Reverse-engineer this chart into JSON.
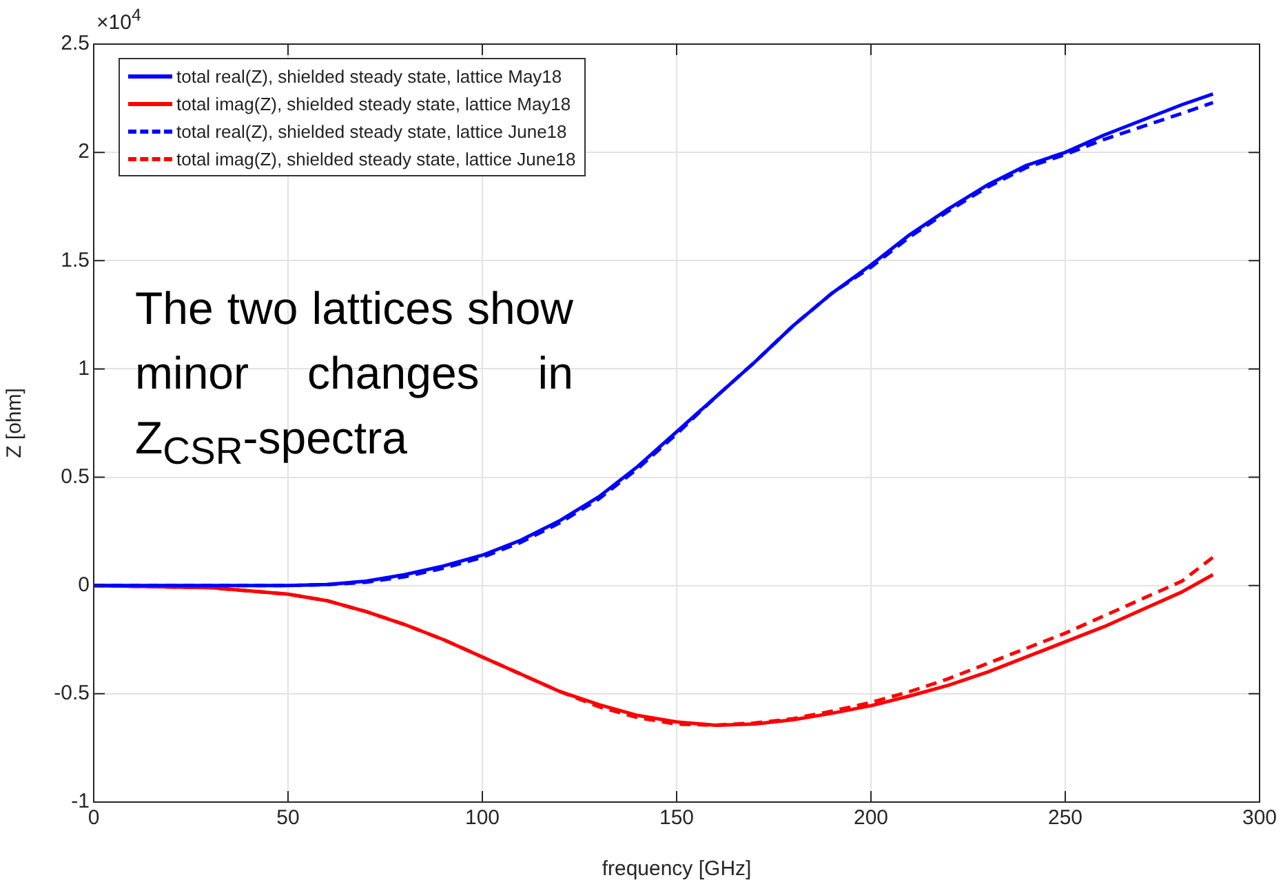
{
  "chart_data": {
    "type": "line",
    "xlabel": "frequency [GHz]",
    "ylabel": "Z [ohm]",
    "annotations": [
      "×10$^{4}$",
      "The two lattices show minor changes in Z$_{CSR}$-spectra"
    ],
    "xlim": [
      0,
      300
    ],
    "xticks": [
      0,
      50,
      100,
      150,
      200,
      250,
      300
    ],
    "ylim": [
      -1,
      2.5
    ],
    "yticks": [
      -1,
      -0.5,
      0,
      0.5,
      1,
      1.5,
      2,
      2.5
    ],
    "grid": true,
    "legend": "top left",
    "marker": "none",
    "series": [
      {
        "name": "total real(Z), shielded steady state, lattice May18",
        "color": "#0000ff",
        "line_style": "solid",
        "x": [
          0,
          50,
          60,
          70,
          80,
          90,
          100,
          110,
          120,
          130,
          140,
          150,
          160,
          170,
          180,
          190,
          200,
          210,
          220,
          230,
          240,
          250,
          260,
          270,
          280,
          288
        ],
        "values": [
          0,
          0,
          0.005,
          0.02,
          0.05,
          0.09,
          0.14,
          0.21,
          0.3,
          0.41,
          0.55,
          0.71,
          0.87,
          1.03,
          1.2,
          1.35,
          1.48,
          1.62,
          1.74,
          1.85,
          1.94,
          2.0,
          2.08,
          2.15,
          2.22,
          2.27
        ]
      },
      {
        "name": "total imag(Z), shielded steady state, lattice May18",
        "color": "#ff0000",
        "line_style": "solid",
        "x": [
          0,
          30,
          50,
          60,
          70,
          80,
          90,
          100,
          110,
          120,
          130,
          140,
          150,
          160,
          170,
          180,
          190,
          200,
          210,
          220,
          230,
          240,
          250,
          260,
          270,
          280,
          288
        ],
        "values": [
          0,
          -0.01,
          -0.04,
          -0.07,
          -0.12,
          -0.18,
          -0.25,
          -0.33,
          -0.41,
          -0.49,
          -0.55,
          -0.6,
          -0.63,
          -0.645,
          -0.64,
          -0.62,
          -0.59,
          -0.555,
          -0.51,
          -0.46,
          -0.4,
          -0.33,
          -0.26,
          -0.19,
          -0.11,
          -0.03,
          0.05
        ]
      },
      {
        "name": "total real(Z), shielded steady state, lattice June18",
        "color": "#0000ff",
        "line_style": "dashed",
        "x": [
          0,
          50,
          60,
          70,
          80,
          90,
          100,
          110,
          120,
          130,
          140,
          150,
          160,
          170,
          180,
          190,
          200,
          210,
          220,
          230,
          240,
          250,
          260,
          270,
          280,
          288
        ],
        "values": [
          0,
          0,
          0.004,
          0.015,
          0.04,
          0.08,
          0.13,
          0.2,
          0.29,
          0.4,
          0.54,
          0.7,
          0.87,
          1.03,
          1.2,
          1.35,
          1.47,
          1.61,
          1.73,
          1.84,
          1.93,
          1.99,
          2.06,
          2.12,
          2.18,
          2.23
        ]
      },
      {
        "name": "total imag(Z), shielded steady state, lattice June18",
        "color": "#ff0000",
        "line_style": "dashed",
        "x": [
          0,
          30,
          50,
          60,
          70,
          80,
          90,
          100,
          110,
          120,
          130,
          140,
          150,
          160,
          170,
          180,
          190,
          200,
          210,
          220,
          230,
          240,
          250,
          260,
          270,
          280,
          288
        ],
        "values": [
          0,
          -0.01,
          -0.04,
          -0.07,
          -0.12,
          -0.18,
          -0.25,
          -0.33,
          -0.41,
          -0.49,
          -0.56,
          -0.61,
          -0.64,
          -0.645,
          -0.635,
          -0.615,
          -0.58,
          -0.54,
          -0.49,
          -0.43,
          -0.36,
          -0.29,
          -0.22,
          -0.14,
          -0.06,
          0.02,
          0.13
        ]
      }
    ]
  }
}
